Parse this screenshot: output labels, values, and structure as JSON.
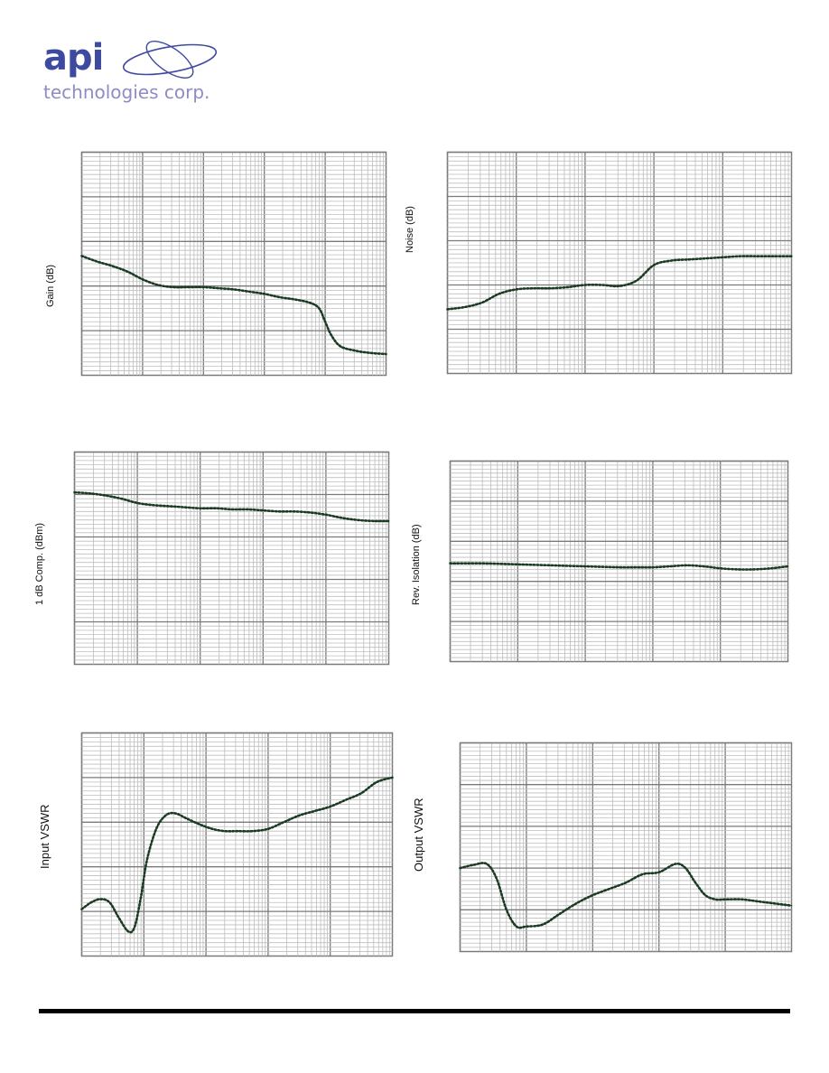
{
  "logo": {
    "main_text": "api",
    "sub_text": "technologies corp.",
    "brand_color": "#3d4aa0",
    "sub_color": "#8f8bc4"
  },
  "colors": {
    "trace": "#1a3a22",
    "grid_major": "#7a7a7a",
    "grid_minor": "#bdbdbd"
  },
  "chart_data": [
    {
      "id": "gain",
      "type": "line",
      "ylabel": "Gain (dB)",
      "grid": true,
      "x": [
        0,
        0.05,
        0.1,
        0.15,
        0.2,
        0.25,
        0.3,
        0.35,
        0.4,
        0.45,
        0.5,
        0.55,
        0.6,
        0.65,
        0.7,
        0.75,
        0.78,
        0.8,
        0.82,
        0.85,
        0.9,
        0.95,
        1
      ],
      "values": [
        0.535,
        0.51,
        0.49,
        0.465,
        0.43,
        0.405,
        0.395,
        0.395,
        0.395,
        0.39,
        0.385,
        0.375,
        0.365,
        0.35,
        0.34,
        0.325,
        0.3,
        0.24,
        0.18,
        0.13,
        0.11,
        0.1,
        0.095
      ]
    },
    {
      "id": "noise",
      "type": "line",
      "ylabel": "Noise (dB)",
      "grid": true,
      "x": [
        0,
        0.05,
        0.1,
        0.15,
        0.2,
        0.25,
        0.3,
        0.35,
        0.4,
        0.45,
        0.5,
        0.55,
        0.6,
        0.65,
        0.7,
        0.75,
        0.8,
        0.85,
        0.9,
        0.95,
        1
      ],
      "values": [
        0.29,
        0.3,
        0.32,
        0.36,
        0.38,
        0.385,
        0.385,
        0.39,
        0.4,
        0.4,
        0.395,
        0.42,
        0.49,
        0.51,
        0.515,
        0.52,
        0.525,
        0.53,
        0.53,
        0.53,
        0.53
      ]
    },
    {
      "id": "p1db",
      "type": "line",
      "ylabel": "1 dB Comp. (dBm)",
      "grid": true,
      "x": [
        0,
        0.05,
        0.1,
        0.15,
        0.2,
        0.25,
        0.3,
        0.35,
        0.4,
        0.45,
        0.5,
        0.55,
        0.6,
        0.65,
        0.7,
        0.75,
        0.8,
        0.85,
        0.9,
        0.95,
        1
      ],
      "values": [
        0.81,
        0.805,
        0.795,
        0.78,
        0.76,
        0.75,
        0.745,
        0.74,
        0.735,
        0.735,
        0.73,
        0.73,
        0.725,
        0.72,
        0.72,
        0.715,
        0.705,
        0.69,
        0.68,
        0.675,
        0.675
      ]
    },
    {
      "id": "isolation",
      "type": "line",
      "ylabel": "Rev. Isolation (dB)",
      "grid": true,
      "x": [
        0,
        0.1,
        0.2,
        0.3,
        0.4,
        0.5,
        0.55,
        0.6,
        0.65,
        0.7,
        0.75,
        0.8,
        0.85,
        0.9,
        0.95,
        1
      ],
      "values": [
        0.49,
        0.49,
        0.485,
        0.48,
        0.475,
        0.47,
        0.47,
        0.47,
        0.475,
        0.48,
        0.475,
        0.465,
        0.46,
        0.46,
        0.465,
        0.475
      ]
    },
    {
      "id": "input_vswr",
      "type": "line",
      "ylabel": "Input VSWR",
      "grid": true,
      "x": [
        0,
        0.03,
        0.06,
        0.09,
        0.12,
        0.15,
        0.17,
        0.19,
        0.21,
        0.24,
        0.27,
        0.3,
        0.34,
        0.38,
        0.42,
        0.46,
        0.5,
        0.55,
        0.6,
        0.65,
        0.7,
        0.75,
        0.8,
        0.85,
        0.9,
        0.95,
        1
      ],
      "values": [
        0.21,
        0.24,
        0.255,
        0.24,
        0.17,
        0.11,
        0.13,
        0.26,
        0.43,
        0.57,
        0.63,
        0.64,
        0.615,
        0.59,
        0.57,
        0.56,
        0.56,
        0.56,
        0.57,
        0.6,
        0.63,
        0.65,
        0.67,
        0.7,
        0.73,
        0.78,
        0.8
      ]
    },
    {
      "id": "output_vswr",
      "type": "line",
      "ylabel": "Output VSWR",
      "grid": true,
      "x": [
        0,
        0.04,
        0.08,
        0.11,
        0.14,
        0.17,
        0.2,
        0.25,
        0.3,
        0.35,
        0.4,
        0.45,
        0.5,
        0.55,
        0.6,
        0.65,
        0.68,
        0.71,
        0.74,
        0.77,
        0.8,
        0.85,
        0.9,
        0.95,
        1
      ],
      "values": [
        0.4,
        0.415,
        0.42,
        0.35,
        0.2,
        0.12,
        0.12,
        0.13,
        0.18,
        0.23,
        0.27,
        0.3,
        0.33,
        0.37,
        0.38,
        0.42,
        0.4,
        0.33,
        0.27,
        0.25,
        0.25,
        0.25,
        0.24,
        0.23,
        0.22
      ]
    }
  ]
}
